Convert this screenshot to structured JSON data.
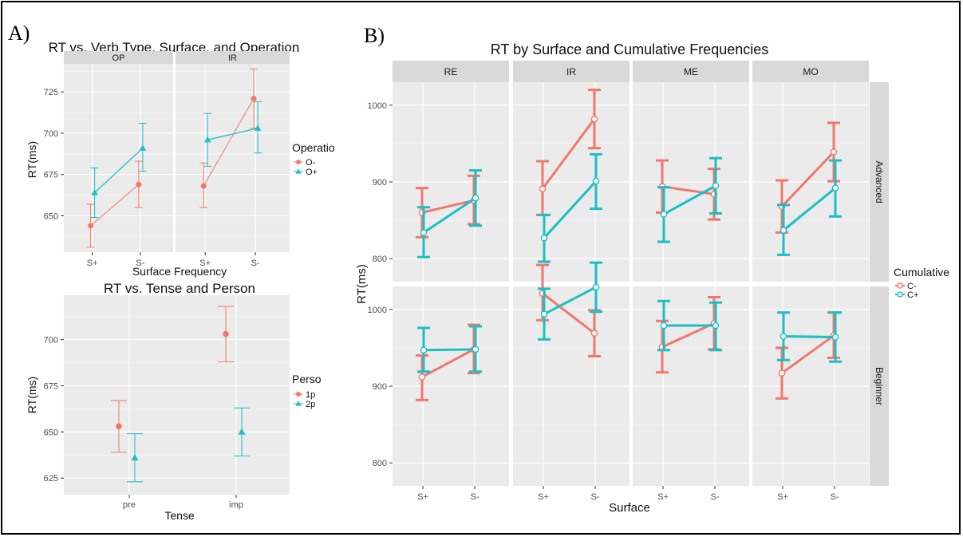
{
  "panel_letters": {
    "a": "A)",
    "b": "B)"
  },
  "colors": {
    "red": "#f0776d",
    "teal": "#1bbfc4",
    "panel_bg": "#ebebeb",
    "strip_bg": "#d9d9d9",
    "grid_major": "#ffffff"
  },
  "chart_data": [
    {
      "id": "A1",
      "type": "line",
      "title": "RT vs. Verb Type, Surface, and Operation",
      "xlabel": "Surface Frequency",
      "ylabel": "RT(ms)",
      "ylim": [
        628,
        742
      ],
      "yticks": [
        650,
        675,
        700,
        725
      ],
      "categories": [
        "S+",
        "S-"
      ],
      "facets": [
        "OP",
        "IR"
      ],
      "legend": {
        "title": "Operatio",
        "placement": "right",
        "entries": [
          "O-",
          "O+"
        ]
      },
      "series": [
        {
          "name": "O-",
          "color": "#f0776d",
          "marker": "circle",
          "values": {
            "OP": [
              644,
              669
            ],
            "IR": [
              668,
              721
            ]
          },
          "err": {
            "OP": [
              [
                631,
                657
              ],
              [
                655,
                683
              ]
            ],
            "IR": [
              [
                655,
                682
              ],
              [
                703,
                739
              ]
            ]
          }
        },
        {
          "name": "O+",
          "color": "#1bbfc4",
          "marker": "triangle",
          "values": {
            "OP": [
              664,
              691
            ],
            "IR": [
              696,
              703
            ]
          },
          "err": {
            "OP": [
              [
                649,
                679
              ],
              [
                677,
                706
              ]
            ],
            "IR": [
              [
                680,
                712
              ],
              [
                688,
                719
              ]
            ]
          }
        }
      ]
    },
    {
      "id": "A2",
      "type": "scatter",
      "title": "RT vs. Tense and Person",
      "xlabel": "Tense",
      "ylabel": "RT(ms)",
      "ylim": [
        616,
        724
      ],
      "yticks": [
        625,
        650,
        675,
        700
      ],
      "categories": [
        "pre",
        "imp"
      ],
      "legend": {
        "title": "Perso",
        "placement": "right",
        "entries": [
          "1p",
          "2p"
        ]
      },
      "series": [
        {
          "name": "1p",
          "color": "#f0776d",
          "marker": "circle",
          "values": [
            653,
            703
          ],
          "err": [
            [
              639,
              667
            ],
            [
              688,
              718
            ]
          ]
        },
        {
          "name": "2p",
          "color": "#1bbfc4",
          "marker": "triangle",
          "values": [
            636,
            650
          ],
          "err": [
            [
              623,
              649
            ],
            [
              637,
              663
            ]
          ]
        }
      ]
    },
    {
      "id": "B",
      "type": "line",
      "title": "RT by Surface and Cumulative Frequencies",
      "xlabel": "Surface",
      "ylabel": "RT(ms)",
      "ylim": [
        770,
        1030
      ],
      "yticks": [
        800,
        900,
        1000
      ],
      "categories": [
        "S+",
        "S-"
      ],
      "facets_col": [
        "RE",
        "IR",
        "ME",
        "MO"
      ],
      "facets_row": [
        "Advanced",
        "Beginner"
      ],
      "legend": {
        "title": "Cumulative",
        "placement": "right",
        "entries": [
          "C-",
          "C+"
        ]
      },
      "series": [
        {
          "name": "C-",
          "color": "#f0776d",
          "values": {
            "Advanced": {
              "RE": [
                860,
                876
              ],
              "IR": [
                891,
                982
              ],
              "ME": [
                894,
                884
              ],
              "MO": [
                868,
                939
              ]
            },
            "Beginner": {
              "RE": [
                912,
                948
              ],
              "IR": [
                1021,
                969
              ],
              "ME": [
                951,
                982
              ],
              "MO": [
                917,
                966
              ]
            }
          },
          "err": {
            "Advanced": {
              "RE": [
                [
                  828,
                  892
                ],
                [
                  845,
                  908
                ]
              ],
              "IR": [
                [
                  857,
                  927
                ],
                [
                  944,
                  1020
                ]
              ],
              "ME": [
                [
                  860,
                  928
                ],
                [
                  851,
                  917
                ]
              ],
              "MO": [
                [
                  834,
                  902
                ],
                [
                  901,
                  977
                ]
              ]
            },
            "Beginner": {
              "RE": [
                [
                  882,
                  940
                ],
                [
                  917,
                  980
                ]
              ],
              "IR": [
                [
                  986,
                  1058
                ],
                [
                  939,
                  999
                ]
              ],
              "ME": [
                [
                  918,
                  985
                ],
                [
                  948,
                  1016
                ]
              ],
              "MO": [
                [
                  884,
                  950
                ],
                [
                  937,
                  996
                ]
              ]
            }
          }
        },
        {
          "name": "C+",
          "color": "#1bbfc4",
          "values": {
            "Advanced": {
              "RE": [
                834,
                879
              ],
              "IR": [
                827,
                901
              ],
              "ME": [
                858,
                895
              ],
              "MO": [
                837,
                892
              ]
            },
            "Beginner": {
              "RE": [
                947,
                948
              ],
              "IR": [
                994,
                1029
              ],
              "ME": [
                979,
                979
              ],
              "MO": [
                965,
                964
              ]
            }
          },
          "err": {
            "Advanced": {
              "RE": [
                [
                  802,
                  867
                ],
                [
                  843,
                  915
                ]
              ],
              "IR": [
                [
                  796,
                  857
                ],
                [
                  865,
                  936
                ]
              ],
              "ME": [
                [
                  822,
                  893
                ],
                [
                  859,
                  931
                ]
              ],
              "MO": [
                [
                  805,
                  870
                ],
                [
                  855,
                  928
                ]
              ]
            },
            "Beginner": {
              "RE": [
                [
                  919,
                  976
                ],
                [
                  919,
                  978
                ]
              ],
              "IR": [
                [
                  961,
                  1027
                ],
                [
                  997,
                  1061
                ]
              ],
              "ME": [
                [
                  947,
                  1011
                ],
                [
                  947,
                  1009
                ]
              ],
              "MO": [
                [
                  934,
                  996
                ],
                [
                  932,
                  996
                ]
              ]
            }
          }
        }
      ]
    }
  ]
}
